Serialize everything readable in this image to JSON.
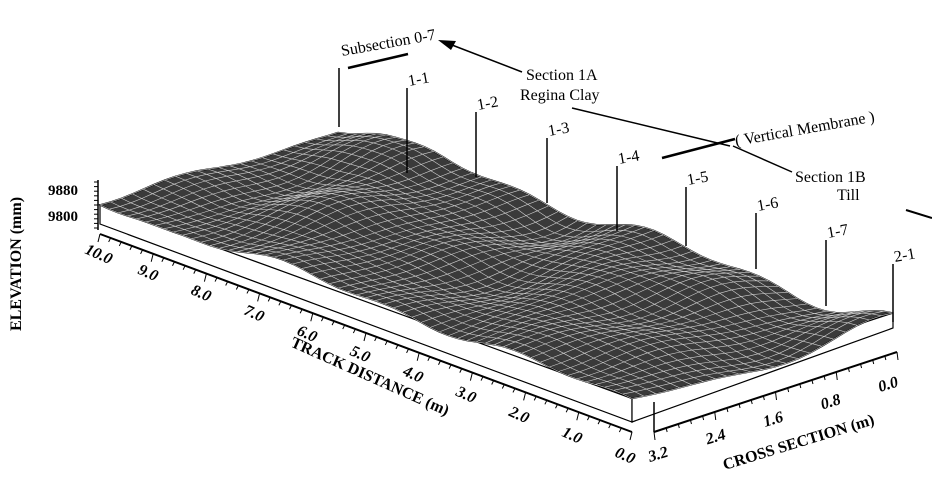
{
  "chart_data": {
    "type": "surface",
    "zlabel": "ELEVATION (mm)",
    "xlabel": "TRACK DISTANCE (m)",
    "ylabel": "CROSS SECTION (m)",
    "z_ticks": [
      "9880",
      "9800"
    ],
    "x_ticks": [
      "10.0",
      "9.0",
      "8.0",
      "7.0",
      "6.0",
      "5.0",
      "4.0",
      "3.0",
      "2.0",
      "1.0",
      "0.0"
    ],
    "y_ticks": [
      "3.2",
      "2.4",
      "1.6",
      "0.8",
      "0.0"
    ],
    "xlim": [
      0.0,
      10.0
    ],
    "ylim": [
      0.0,
      3.2
    ],
    "stations": [
      "1-1",
      "1-2",
      "1-3",
      "1-4",
      "1-5",
      "1-6",
      "1-7",
      "2-1"
    ],
    "annotations": {
      "subsection": "Subsection 0-7",
      "section_1a": [
        "Section 1A",
        "Regina Clay"
      ],
      "membrane": "( Vertical Membrane )",
      "section_1b": [
        "Section 1B",
        "Till"
      ]
    }
  }
}
